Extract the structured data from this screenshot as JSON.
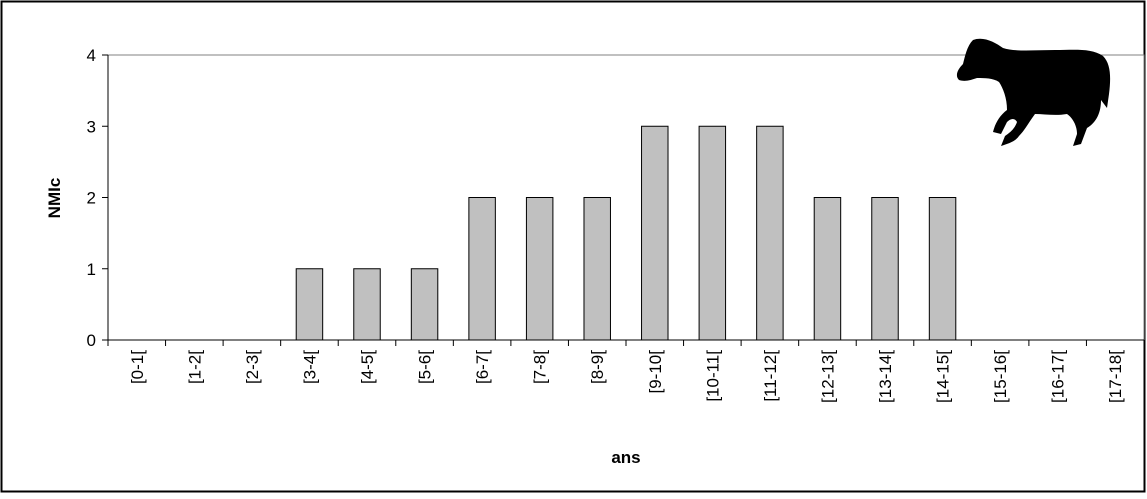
{
  "chart_data": {
    "type": "bar",
    "x_label": "ans",
    "y_label": "NMIc",
    "categories": [
      "[0-1[",
      "[1-2[",
      "[2-3[",
      "[3-4[",
      "[4-5[",
      "[5-6[",
      "[6-7[",
      "[7-8[",
      "[8-9[",
      "[9-10[",
      "[10-11[",
      "[11-12[",
      "[12-13[",
      "[13-14[",
      "[14-15[",
      "[15-16[",
      "[16-17[",
      "[17-18["
    ],
    "values": [
      0,
      0,
      0,
      1,
      1,
      1,
      2,
      2,
      2,
      3,
      3,
      3,
      2,
      2,
      2,
      0,
      0,
      0
    ],
    "color": "#c0c0c0",
    "ylim": [
      0,
      4
    ],
    "yticks": [
      0,
      1,
      2,
      3,
      4
    ],
    "grid": false
  }
}
